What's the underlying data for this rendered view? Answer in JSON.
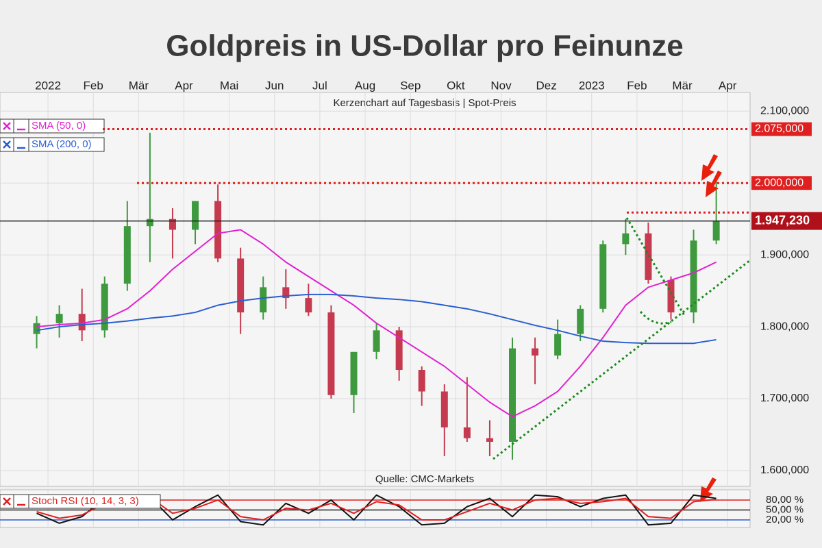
{
  "chart_data": [
    {
      "type": "candlestick",
      "title": "Goldpreis in US-Dollar pro Feinunze",
      "subtitle": "Kerzenchart auf Tagesbasis | Spot-Preis",
      "source": "Quelle: CMC-Markets",
      "categories": [
        null,
        "2022",
        null,
        "Feb",
        null,
        "Mär",
        null,
        "Apr",
        null,
        "Mai",
        null,
        "Jun",
        null,
        "Jul",
        null,
        "Aug",
        null,
        "Sep",
        null,
        "Okt",
        null,
        "Nov",
        null,
        "Dez",
        null,
        "2023",
        null,
        "Feb",
        null,
        "Mär",
        null,
        "Apr"
      ],
      "open": [
        1790,
        1805,
        1818,
        1795,
        1860,
        1940,
        1950,
        1935,
        1975,
        1895,
        1820,
        1855,
        1840,
        1820,
        1705,
        1765,
        1795,
        1740,
        1710,
        1660,
        1645,
        1640,
        1770,
        1760,
        1790,
        1825,
        1915,
        1930,
        1865,
        1820,
        1920,
        null
      ],
      "high": [
        1815,
        1830,
        1853,
        1870,
        1975,
        2070,
        1965,
        1975,
        1998,
        1910,
        1870,
        1880,
        1860,
        1830,
        1765,
        1805,
        1800,
        1745,
        1720,
        1730,
        1670,
        1785,
        1785,
        1810,
        1830,
        1920,
        1950,
        1945,
        1870,
        1935,
        2010,
        null
      ],
      "low": [
        1770,
        1785,
        1780,
        1785,
        1850,
        1890,
        1895,
        1915,
        1890,
        1790,
        1810,
        1825,
        1815,
        1700,
        1680,
        1755,
        1725,
        1690,
        1620,
        1640,
        1620,
        1615,
        1720,
        1755,
        1780,
        1820,
        1900,
        1860,
        1810,
        1805,
        1915,
        null
      ],
      "close": [
        1805,
        1818,
        1795,
        1860,
        1940,
        1950,
        1935,
        1975,
        1895,
        1820,
        1855,
        1840,
        1820,
        1705,
        1765,
        1795,
        1740,
        1710,
        1660,
        1645,
        1640,
        1770,
        1760,
        1790,
        1825,
        1915,
        1930,
        1865,
        1820,
        1920,
        1947.23,
        null
      ],
      "up_color": "#3f9a3f",
      "down_color": "#c53a4e",
      "series": [
        {
          "name": "SMA (50, 0)",
          "color": "#e020d0",
          "values": [
            1800,
            1803,
            1805,
            1810,
            1825,
            1850,
            1880,
            1905,
            1930,
            1935,
            1915,
            1890,
            1870,
            1850,
            1830,
            1805,
            1785,
            1765,
            1745,
            1720,
            1695,
            1675,
            1690,
            1710,
            1745,
            1785,
            1830,
            1855,
            1865,
            1875,
            1890,
            null
          ]
        },
        {
          "name": "SMA (200, 0)",
          "color": "#2a5fd0",
          "values": [
            1795,
            1800,
            1803,
            1805,
            1808,
            1812,
            1815,
            1820,
            1830,
            1836,
            1840,
            1843,
            1845,
            1845,
            1843,
            1840,
            1838,
            1835,
            1830,
            1825,
            1818,
            1810,
            1802,
            1795,
            1787,
            1780,
            1778,
            1777,
            1777,
            1777,
            1782,
            null
          ]
        }
      ],
      "levels": [
        {
          "value": 2075,
          "label": "2.075,000",
          "color": "#e02020"
        },
        {
          "value": 2000,
          "label": "2.000,000",
          "color": "#e02020"
        },
        {
          "value": 1959,
          "color": "#e02020"
        },
        {
          "value": 1947.23,
          "label": "1.947,230",
          "color": "#222222"
        }
      ],
      "ylim": [
        1578,
        2126
      ],
      "yticks": [
        {
          "value": 1600,
          "label": "1.600,000"
        },
        {
          "value": 1700,
          "label": "1.700,000"
        },
        {
          "value": 1800,
          "label": "1.800,000"
        },
        {
          "value": 1900,
          "label": "1.900,000"
        },
        {
          "value": 2000,
          "label": "2.000,000"
        },
        {
          "value": 2100,
          "label": "2.100,000"
        }
      ],
      "grid": true
    },
    {
      "type": "line",
      "title": "Stoch RSI (10, 14, 3, 3)",
      "series": [
        {
          "color": "#111111",
          "values": [
            40,
            10,
            30,
            85,
            95,
            90,
            20,
            60,
            95,
            15,
            5,
            70,
            40,
            80,
            20,
            95,
            60,
            5,
            10,
            60,
            85,
            30,
            95,
            90,
            60,
            85,
            95,
            5,
            10,
            95,
            85,
            null
          ]
        },
        {
          "color": "#e02020",
          "values": [
            45,
            25,
            35,
            70,
            85,
            88,
            40,
            55,
            80,
            30,
            20,
            55,
            50,
            70,
            40,
            75,
            65,
            20,
            20,
            45,
            70,
            50,
            80,
            85,
            70,
            75,
            85,
            30,
            25,
            75,
            82,
            null
          ]
        }
      ],
      "ylim": [
        0,
        100
      ],
      "yticks": [
        {
          "value": 80,
          "label": "80,00 %",
          "color": "#e02020"
        },
        {
          "value": 50,
          "label": "50,00 %",
          "color": "#222222"
        },
        {
          "value": 20,
          "label": "20,00 %",
          "color": "#2a5fd0"
        }
      ]
    }
  ]
}
